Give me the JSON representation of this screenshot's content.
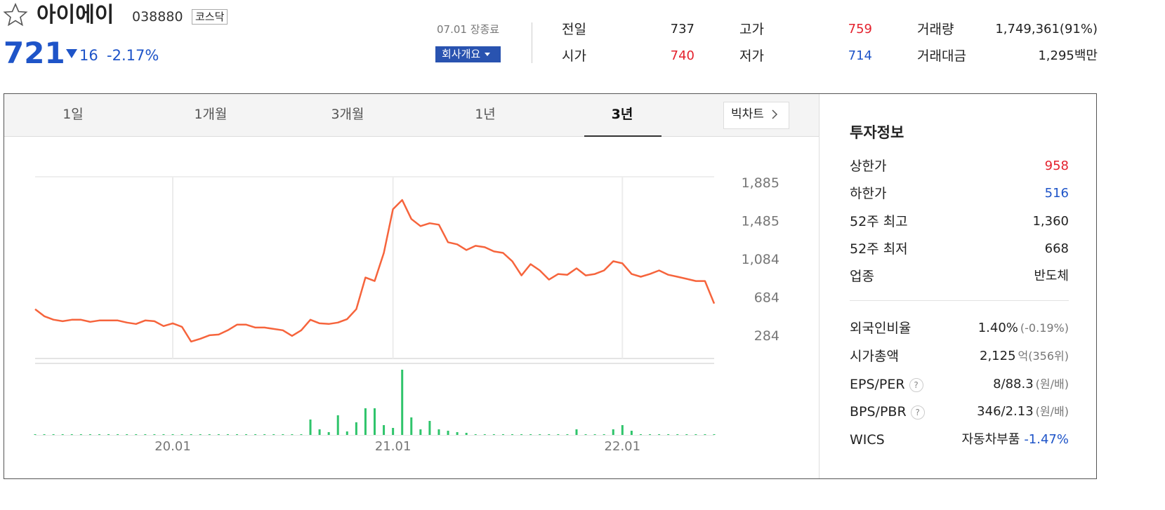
{
  "header": {
    "name": "아이에이",
    "code": "038880",
    "market": "코스닥",
    "price": "721",
    "change": "16",
    "change_rate": "-2.17%",
    "status": "07.01 장종료",
    "company_button": "회사개요"
  },
  "stats": [
    {
      "label": "전일",
      "value": "737"
    },
    {
      "label": "시가",
      "value": "740"
    },
    {
      "label": "고가",
      "value": "759"
    },
    {
      "label": "저가",
      "value": "714"
    },
    {
      "label": "거래량",
      "value": "1,749,361(91%)"
    },
    {
      "label": "거래대금",
      "value": "1,295백만"
    }
  ],
  "tabs": [
    "1일",
    "1개월",
    "3개월",
    "1년",
    "3년"
  ],
  "active_tab": 4,
  "big_chart": "빅차트",
  "chart_data": {
    "type": "line",
    "categories": [
      null,
      null,
      null,
      null,
      null,
      null,
      null,
      null,
      null,
      null,
      null,
      null,
      null,
      null,
      null,
      "20.01",
      null,
      null,
      null,
      null,
      null,
      null,
      null,
      null,
      null,
      null,
      null,
      null,
      null,
      null,
      null,
      null,
      null,
      null,
      null,
      null,
      null,
      null,
      null,
      "21.01",
      null,
      null,
      null,
      null,
      null,
      null,
      null,
      null,
      null,
      null,
      null,
      null,
      null,
      null,
      null,
      null,
      null,
      null,
      null,
      null,
      null,
      null,
      null,
      null,
      "22.01",
      null,
      null,
      null,
      null,
      null,
      null,
      null,
      null,
      null,
      null
    ],
    "series": [
      {
        "color": "#f6643c",
        "values": [
          557,
          483,
          447,
          431,
          446,
          446,
          424,
          439,
          439,
          439,
          417,
          402,
          439,
          431,
          380,
          409,
          372,
          218,
          247,
          284,
          291,
          336,
          395,
          395,
          365,
          365,
          350,
          336,
          277,
          336,
          446,
          409,
          402,
          417,
          453,
          557,
          888,
          851,
          1146,
          1603,
          1699,
          1500,
          1426,
          1456,
          1441,
          1257,
          1235,
          1176,
          1220,
          1205,
          1161,
          1146,
          1058,
          910,
          1028,
          962,
          866,
          925,
          917,
          984,
          910,
          925,
          962,
          1058,
          1036,
          925,
          896,
          925,
          962,
          917,
          896,
          874,
          851,
          851,
          616
        ]
      }
    ],
    "ylim": [
      41,
      1942
    ],
    "yticks": [
      {
        "value": 1885,
        "label": "1,885"
      },
      {
        "value": 1485,
        "label": "1,485"
      },
      {
        "value": 1084,
        "label": "1,084"
      },
      684,
      284
    ],
    "volume": {
      "type": "bar",
      "color": "#2fc46b",
      "ylim": [
        0,
        100
      ],
      "values": [
        1,
        1,
        1,
        1,
        1,
        1,
        1,
        1,
        1,
        1,
        1,
        1,
        1,
        1,
        1,
        1,
        1,
        1,
        1,
        1,
        1,
        1,
        1,
        1,
        1,
        1,
        1,
        1,
        1,
        1,
        22,
        8,
        4,
        28,
        5,
        18,
        38,
        38,
        14,
        10,
        93,
        25,
        8,
        20,
        8,
        6,
        4,
        3,
        1,
        1,
        1,
        1,
        1,
        1,
        1,
        1,
        1,
        1,
        1,
        8,
        1,
        1,
        1,
        8,
        14,
        6,
        1,
        1,
        1,
        1,
        1,
        1,
        1,
        1,
        1
      ]
    }
  },
  "invest": {
    "title": "투자정보",
    "rows": [
      {
        "label": "상한가",
        "value": "958"
      },
      {
        "label": "하한가",
        "value": "516"
      },
      {
        "label": "52주 최고",
        "value": "1,360"
      },
      {
        "label": "52주 최저",
        "value": "668"
      },
      {
        "label": "업종",
        "value": "반도체"
      },
      {
        "label": "외국인비율",
        "value": "1.40%",
        "note": "(-0.19%)"
      },
      {
        "label": "시가총액",
        "value": "2,125",
        "note": "억(356위)"
      },
      {
        "label": "EPS/PER",
        "value": "8/88.3",
        "note": "(원/배)"
      },
      {
        "label": "BPS/PBR",
        "value": "346/2.13",
        "note": "(원/배)"
      },
      {
        "label": "WICS",
        "value": "자동차부품",
        "note": "-1.47%"
      }
    ]
  }
}
